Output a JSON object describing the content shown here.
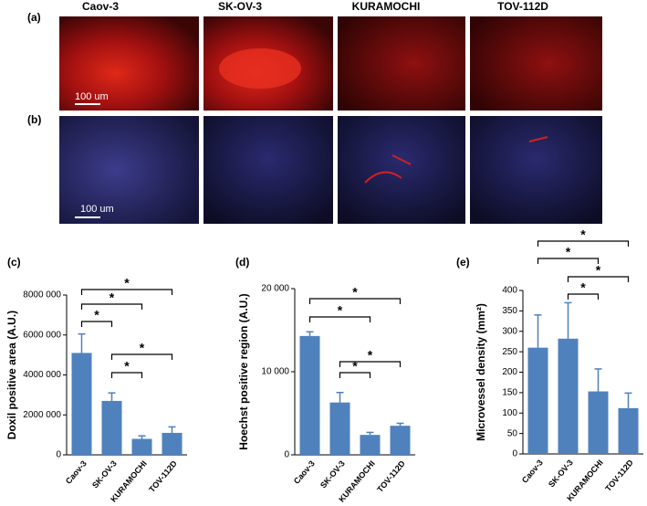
{
  "images": {
    "columns": [
      "Caov-3",
      "SK-OV-3",
      "KURAMOCHI",
      "TOV-112D"
    ],
    "rows": [
      "(a)",
      "(b)"
    ],
    "scale_bars": [
      "100 um",
      "100 um"
    ]
  },
  "chart_data": [
    {
      "type": "bar",
      "panel_label": "(c)",
      "ylabel": "Doxil positive area (A.U.)",
      "categories": [
        "Caov-3",
        "SK-OV-3",
        "KURAMOCHI",
        "TOV-112D"
      ],
      "values": [
        5100000,
        2700000,
        800000,
        1100000
      ],
      "errors": [
        950000,
        400000,
        150000,
        300000
      ],
      "color": "#4f81bd",
      "ylim": [
        0,
        8000000
      ],
      "yticks": [
        0,
        {
          "value": 2000000,
          "label": "2000 000"
        },
        {
          "value": 4000000,
          "label": "4000 000"
        },
        {
          "value": 6000000,
          "label": "6000 000"
        },
        {
          "value": 8000000,
          "label": "8000 000"
        }
      ],
      "annotations": [
        "*",
        "*",
        "*",
        "*",
        "*"
      ]
    },
    {
      "type": "bar",
      "panel_label": "(d)",
      "ylabel": "Hoechst positive region (A.U.)",
      "categories": [
        "Caov-3",
        "SK-OV-3",
        "KURAMOCHI",
        "TOV-112D"
      ],
      "values": [
        14300,
        6300,
        2400,
        3500
      ],
      "errors": [
        500,
        1200,
        300,
        300
      ],
      "color": "#4f81bd",
      "ylim": [
        0,
        20000
      ],
      "yticks": [
        0,
        {
          "value": 10000,
          "label": "10 000"
        },
        {
          "value": 20000,
          "label": "20 000"
        }
      ],
      "annotations": [
        "*",
        "*",
        "*",
        "*"
      ]
    },
    {
      "type": "bar",
      "panel_label": "(e)",
      "ylabel": "Microvessel density (mm²)",
      "categories": [
        "Caov-3",
        "SK-OV-3",
        "KURAMOCHI",
        "TOV-112D"
      ],
      "values": [
        260,
        282,
        153,
        112
      ],
      "errors": [
        80,
        88,
        55,
        37
      ],
      "color": "#4f81bd",
      "ylim": [
        0,
        400
      ],
      "yticks": [
        0,
        50,
        100,
        150,
        200,
        250,
        300,
        350,
        400
      ],
      "annotations": [
        "*",
        "*",
        "*",
        "*"
      ]
    }
  ]
}
